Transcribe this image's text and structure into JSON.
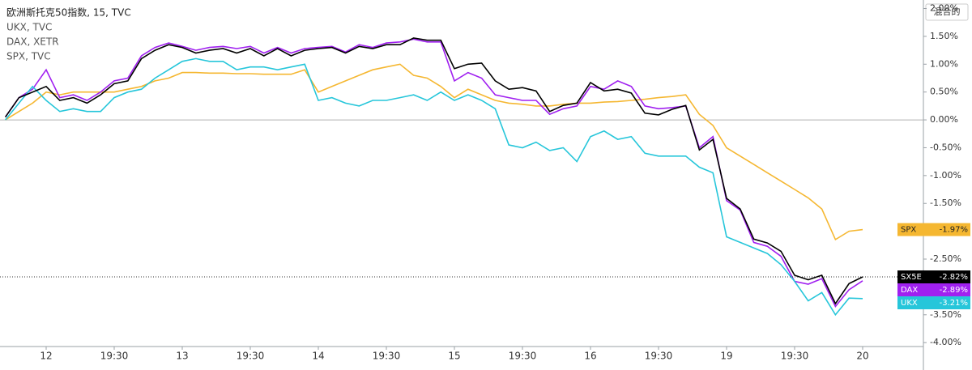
{
  "chart_data": {
    "type": "line",
    "x": [
      0.7,
      0.8,
      0.9,
      1.0,
      1.1,
      1.2,
      1.3,
      1.4,
      1.5,
      1.6,
      1.7,
      1.8,
      1.9,
      2.0,
      2.1,
      2.2,
      2.3,
      2.4,
      2.5,
      2.6,
      2.7,
      2.8,
      2.9,
      3.0,
      3.1,
      3.2,
      3.3,
      3.4,
      3.5,
      3.6,
      3.7,
      3.8,
      3.9,
      4.0,
      4.1,
      4.2,
      4.3,
      4.4,
      4.5,
      4.6,
      4.7,
      4.8,
      4.9,
      5.0,
      5.1,
      5.2,
      5.3,
      5.4,
      5.5,
      5.6,
      5.7,
      5.8,
      5.9,
      6.0,
      6.1,
      6.2,
      6.3,
      6.4,
      6.5,
      6.6,
      6.7,
      6.8,
      6.9,
      7.0
    ],
    "xlim": [
      0.6607,
      7.4464
    ],
    "xticks": [
      {
        "value": 1,
        "label": "12"
      },
      {
        "value": 1.5,
        "label": "19:30"
      },
      {
        "value": 2,
        "label": "13"
      },
      {
        "value": 2.5,
        "label": "19:30"
      },
      {
        "value": 3,
        "label": "14"
      },
      {
        "value": 3.5,
        "label": "19:30"
      },
      {
        "value": 4,
        "label": "15"
      },
      {
        "value": 4.5,
        "label": "19:30"
      },
      {
        "value": 5,
        "label": "16"
      },
      {
        "value": 5.5,
        "label": "19:30"
      },
      {
        "value": 6,
        "label": "19"
      },
      {
        "value": 6.5,
        "label": "19:30"
      },
      {
        "value": 7,
        "label": "20"
      }
    ],
    "ylim": [
      -4.07,
      2.08
    ],
    "yticks": [
      {
        "value": 2,
        "label": "2.00%"
      },
      {
        "value": 1.5,
        "label": "1.50%"
      },
      {
        "value": 1,
        "label": "1.00%"
      },
      {
        "value": 0.5,
        "label": "0.50%"
      },
      {
        "value": 0,
        "label": "0.00%"
      },
      {
        "value": -0.5,
        "label": "-0.50%"
      },
      {
        "value": -1,
        "label": "-1.00%"
      },
      {
        "value": -1.5,
        "label": "-1.50%"
      },
      {
        "value": -2,
        "label": "-2.00%"
      },
      {
        "value": -2.5,
        "label": "-2.50%"
      },
      {
        "value": -3,
        "label": "-3.00%"
      },
      {
        "value": -3.5,
        "label": "-3.50%"
      },
      {
        "value": -4,
        "label": "-4.00%"
      }
    ],
    "zero_line": true,
    "series": [
      {
        "name": "欧洲斯托克50指数, 15, TVC",
        "symbol": "SX5E",
        "color": "#000000",
        "label_color": "#ffffff",
        "last_label": "-2.82%",
        "price_line": true,
        "values": [
          0.05,
          0.4,
          0.5,
          0.6,
          0.35,
          0.4,
          0.3,
          0.45,
          0.65,
          0.7,
          1.1,
          1.25,
          1.35,
          1.3,
          1.2,
          1.25,
          1.28,
          1.2,
          1.28,
          1.15,
          1.28,
          1.15,
          1.25,
          1.28,
          1.3,
          1.2,
          1.32,
          1.28,
          1.35,
          1.35,
          1.47,
          1.43,
          1.43,
          0.92,
          1.0,
          1.02,
          0.7,
          0.55,
          0.58,
          0.52,
          0.15,
          0.26,
          0.3,
          0.67,
          0.52,
          0.55,
          0.48,
          0.12,
          0.09,
          0.19,
          0.26,
          -0.54,
          -0.35,
          -1.41,
          -1.6,
          -2.14,
          -2.21,
          -2.36,
          -2.79,
          -2.87,
          -2.79,
          -3.3,
          -2.94,
          -2.82
        ]
      },
      {
        "name": "UKX, TVC",
        "symbol": "UKX",
        "color": "#26c6da",
        "label_color": "#ffffff",
        "last_label": "-3.21%",
        "price_line": false,
        "values": [
          0.0,
          0.3,
          0.6,
          0.35,
          0.15,
          0.2,
          0.15,
          0.15,
          0.4,
          0.5,
          0.55,
          0.75,
          0.9,
          1.05,
          1.1,
          1.05,
          1.05,
          0.9,
          0.95,
          0.95,
          0.9,
          0.95,
          1.0,
          0.35,
          0.4,
          0.3,
          0.25,
          0.35,
          0.35,
          0.4,
          0.45,
          0.35,
          0.5,
          0.35,
          0.45,
          0.35,
          0.2,
          -0.45,
          -0.5,
          -0.4,
          -0.55,
          -0.5,
          -0.75,
          -0.3,
          -0.2,
          -0.35,
          -0.3,
          -0.6,
          -0.65,
          -0.65,
          -0.65,
          -0.85,
          -0.95,
          -2.1,
          -2.2,
          -2.3,
          -2.4,
          -2.6,
          -2.9,
          -3.25,
          -3.1,
          -3.5,
          -3.2,
          -3.21
        ]
      },
      {
        "name": "DAX, XETR",
        "symbol": "DAX",
        "color": "#a020f0",
        "label_color": "#ffffff",
        "last_label": "-2.89%",
        "price_line": false,
        "values": [
          0.05,
          0.4,
          0.55,
          0.9,
          0.4,
          0.45,
          0.35,
          0.5,
          0.7,
          0.75,
          1.15,
          1.3,
          1.38,
          1.32,
          1.25,
          1.3,
          1.32,
          1.28,
          1.32,
          1.2,
          1.3,
          1.2,
          1.28,
          1.3,
          1.32,
          1.22,
          1.35,
          1.3,
          1.38,
          1.4,
          1.45,
          1.4,
          1.4,
          0.7,
          0.85,
          0.75,
          0.45,
          0.4,
          0.35,
          0.35,
          0.1,
          0.2,
          0.25,
          0.6,
          0.55,
          0.7,
          0.6,
          0.25,
          0.2,
          0.22,
          0.25,
          -0.5,
          -0.3,
          -1.45,
          -1.62,
          -2.2,
          -2.27,
          -2.45,
          -2.9,
          -2.95,
          -2.85,
          -3.35,
          -3.05,
          -2.89
        ]
      },
      {
        "name": "SPX, TVC",
        "symbol": "SPX",
        "color": "#f5b731",
        "label_color": "#222222",
        "last_label": "-1.97%",
        "price_line": false,
        "values": [
          0.0,
          0.15,
          0.3,
          0.5,
          0.45,
          0.5,
          0.5,
          0.5,
          0.5,
          0.55,
          0.6,
          0.7,
          0.75,
          0.85,
          0.85,
          0.84,
          0.84,
          0.83,
          0.83,
          0.82,
          0.82,
          0.82,
          0.9,
          0.5,
          0.6,
          0.7,
          0.8,
          0.9,
          0.95,
          1.0,
          0.8,
          0.75,
          0.6,
          0.4,
          0.55,
          0.45,
          0.35,
          0.3,
          0.28,
          0.25,
          0.25,
          0.28,
          0.3,
          0.3,
          0.32,
          0.33,
          0.35,
          0.37,
          0.4,
          0.42,
          0.45,
          0.1,
          -0.1,
          -0.5,
          -0.65,
          -0.8,
          -0.95,
          -1.1,
          -1.25,
          -1.4,
          -1.6,
          -2.15,
          -2.0,
          -1.97
        ]
      }
    ]
  },
  "ui": {
    "scale_button": "混合的"
  }
}
